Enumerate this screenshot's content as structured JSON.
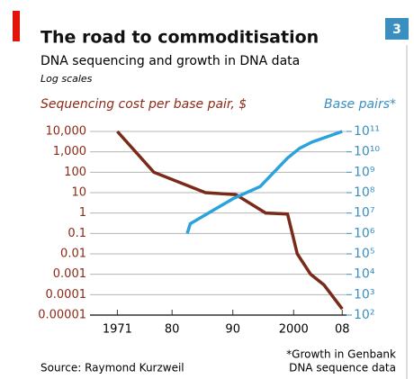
{
  "badge": "3",
  "chart_data": {
    "type": "line",
    "title": "The road to commoditisation",
    "subtitle": "DNA sequencing and growth in DNA data",
    "note": "Log scales",
    "y_label": "Sequencing cost per base pair, $",
    "y2_label": "Base pairs*",
    "footnote": [
      "*Growth in Genbank",
      "DNA sequence data"
    ],
    "source": "Source: Raymond Kurzweil",
    "log_y": true,
    "log_y2": true,
    "grid": true,
    "xlim": [
      1966.5,
      2008.7
    ],
    "xticks": [
      1971,
      {
        "value": 1980,
        "label": "80"
      },
      {
        "value": 1990,
        "label": "90"
      },
      2000,
      {
        "value": 2008,
        "label": "08"
      }
    ],
    "ylim": [
      1e-05,
      10000
    ],
    "yticks": [
      {
        "value": 10000,
        "label": "10,000"
      },
      {
        "value": 1000,
        "label": "1,000"
      },
      100,
      10,
      1,
      0.1,
      0.01,
      0.001,
      0.0001,
      1e-05
    ],
    "y2lim": [
      100,
      100000000000
    ],
    "y2ticks": [
      {
        "value": 100000000000,
        "label": "10¹¹"
      },
      {
        "value": 10000000000,
        "label": "10¹⁰"
      },
      {
        "value": 1000000000,
        "label": "10⁹"
      },
      {
        "value": 100000000,
        "label": "10⁸"
      },
      {
        "value": 10000000,
        "label": "10⁷"
      },
      {
        "value": 1000000,
        "label": "10⁶"
      },
      {
        "value": 100000,
        "label": "10⁵"
      },
      {
        "value": 10000,
        "label": "10⁴"
      },
      {
        "value": 1000,
        "label": "10³"
      },
      {
        "value": 100,
        "label": "10²"
      }
    ],
    "series": [
      {
        "name": "Sequencing cost per base pair, $",
        "color": "#7a2a18",
        "x": [
          1971,
          1977,
          1985.5,
          1990.5,
          1995.4,
          1999,
          2000.6,
          2002.8,
          2005,
          2008
        ],
        "values": [
          10000,
          100,
          10,
          8,
          1,
          0.9,
          0.01,
          0.001,
          0.0003,
          2e-05
        ]
      },
      {
        "name": "Base pairs*",
        "color": "#2aa3dc",
        "axis": "y2",
        "x": [
          1982.5,
          1983,
          1986,
          1990,
          1994.5,
          1999,
          2001,
          2003,
          2008
        ],
        "values": [
          1000000,
          3000000,
          10000000,
          50000000,
          200000000,
          5000000000,
          15000000000,
          30000000000,
          100000000000
        ]
      }
    ]
  }
}
